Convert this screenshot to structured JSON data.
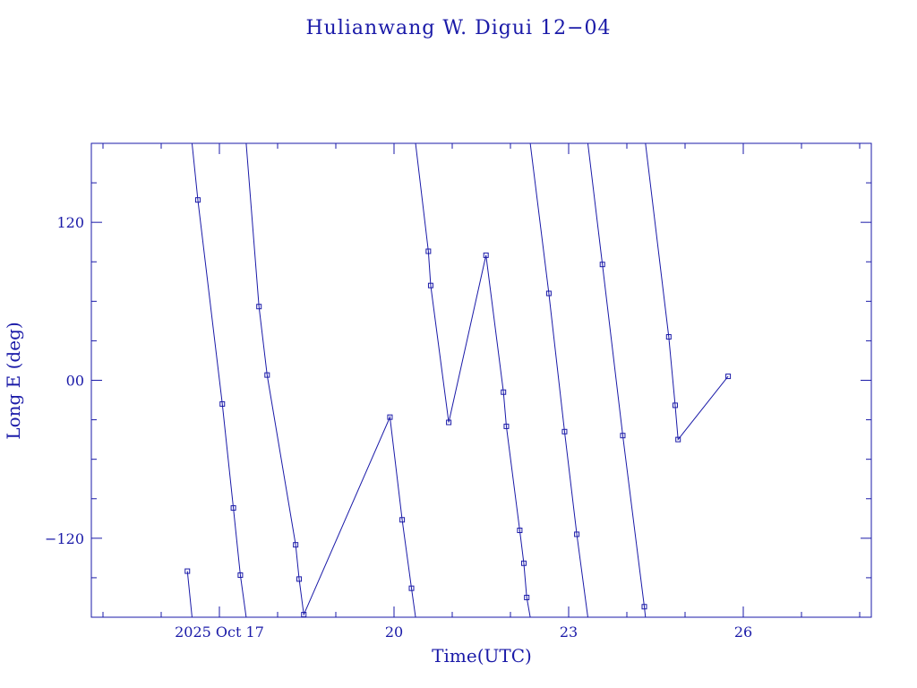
{
  "chart_data": {
    "type": "line",
    "title": "Hulianwang W. Digui 12−04",
    "xlabel": "Time(UTC)",
    "ylabel": "Long E (deg)",
    "x_unit": "days of Oct 2025 (UTC)",
    "xlim": [
      14.8,
      28.2
    ],
    "ylim": [
      -180,
      180
    ],
    "x_ticks": [
      {
        "value": 17,
        "label": "2025 Oct 17"
      },
      {
        "value": 20,
        "label": "20"
      },
      {
        "value": 23,
        "label": "23"
      },
      {
        "value": 26,
        "label": "26"
      }
    ],
    "y_ticks": [
      {
        "value": 120,
        "label": "120"
      },
      {
        "value": 0,
        "label": "00"
      },
      {
        "value": -120,
        "label": "−120"
      }
    ],
    "grid": false,
    "series": [
      {
        "color": "#1a1aa8",
        "points": [
          [
            16.45,
            -145
          ],
          [
            16.53,
            -180
          ],
          null,
          [
            16.53,
            180
          ],
          [
            16.63,
            137
          ],
          [
            17.05,
            -18
          ],
          [
            17.24,
            -97
          ],
          [
            17.36,
            -148
          ],
          [
            17.46,
            -180
          ],
          null,
          [
            17.46,
            180
          ],
          [
            17.68,
            56
          ],
          [
            17.82,
            4
          ],
          [
            18.31,
            -125
          ],
          [
            18.37,
            -151
          ],
          [
            18.45,
            -178
          ],
          [
            19.93,
            -28
          ],
          [
            20.14,
            -106
          ],
          [
            20.3,
            -158
          ],
          [
            20.37,
            -180
          ],
          null,
          [
            20.37,
            180
          ],
          [
            20.59,
            98
          ],
          [
            20.63,
            72
          ],
          [
            20.94,
            -32
          ],
          [
            21.58,
            95
          ],
          [
            21.88,
            -9
          ],
          [
            21.93,
            -35
          ],
          [
            22.16,
            -114
          ],
          [
            22.23,
            -139
          ],
          [
            22.28,
            -165
          ],
          [
            22.34,
            -180
          ],
          null,
          [
            22.34,
            180
          ],
          [
            22.66,
            66
          ],
          [
            22.93,
            -39
          ],
          [
            23.14,
            -117
          ],
          [
            23.33,
            -180
          ],
          null,
          [
            23.33,
            180
          ],
          [
            23.58,
            88
          ],
          [
            23.93,
            -42
          ],
          [
            24.3,
            -172
          ],
          [
            24.32,
            -180
          ],
          null,
          [
            24.32,
            180
          ],
          [
            24.72,
            33
          ],
          [
            24.83,
            -19
          ],
          [
            24.88,
            -45
          ],
          [
            25.74,
            3
          ]
        ]
      }
    ]
  }
}
